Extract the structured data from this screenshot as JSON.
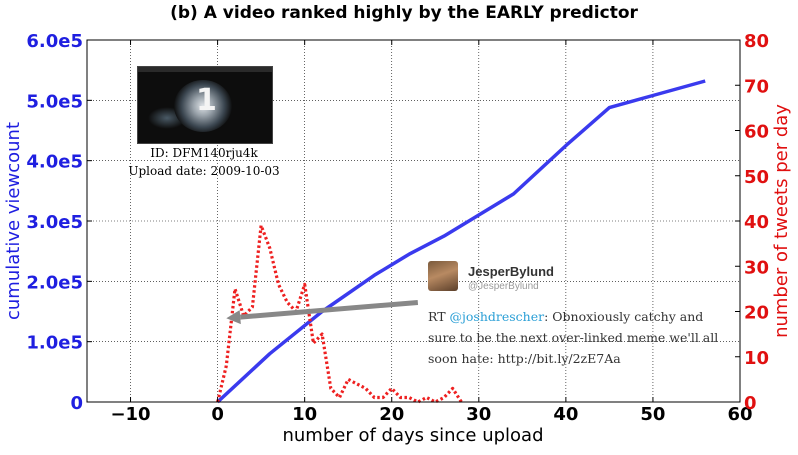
{
  "chart_data": {
    "type": "line",
    "title": "(b) A video ranked highly by the EARLY predictor",
    "xlabel": "number of days since upload",
    "ylabel_left": "cumulative viewcount",
    "ylabel_right": "number of tweets per day",
    "xlim": [
      -15,
      60
    ],
    "ylim_left": [
      0,
      600000
    ],
    "ylim_right": [
      0,
      80
    ],
    "x_ticks": [
      -10,
      0,
      10,
      20,
      30,
      40,
      50,
      60
    ],
    "x_tick_labels": [
      "−10",
      "0",
      "10",
      "20",
      "30",
      "40",
      "50",
      "60"
    ],
    "y_left_ticks": [
      0,
      100000,
      200000,
      300000,
      400000,
      500000,
      600000
    ],
    "y_left_tick_labels": [
      "0",
      "1.0e5",
      "2.0e5",
      "3.0e5",
      "4.0e5",
      "5.0e5",
      "6.0e5"
    ],
    "y_right_ticks": [
      0,
      10,
      20,
      30,
      40,
      50,
      60,
      70,
      80
    ],
    "y_right_tick_labels": [
      "0",
      "10",
      "20",
      "30",
      "40",
      "50",
      "60",
      "70",
      "80"
    ],
    "grid": true,
    "series": [
      {
        "axis": "left",
        "style": "solid",
        "color": "#3a3aee",
        "x": [
          0,
          6,
          12,
          18,
          22,
          26,
          30,
          34,
          40,
          45,
          50,
          56
        ],
        "y": [
          0,
          80000,
          150000,
          210000,
          245000,
          275000,
          310000,
          345000,
          425000,
          488000,
          508000,
          532000
        ]
      },
      {
        "axis": "right",
        "style": "dotted",
        "color": "#ee2020",
        "x": [
          0,
          1,
          2,
          3,
          4,
          5,
          6,
          7,
          8,
          9,
          10,
          11,
          12,
          13,
          14,
          15,
          16,
          17,
          18,
          19,
          20,
          21,
          22,
          23,
          24,
          25,
          26,
          27,
          28
        ],
        "y": [
          0,
          8,
          25,
          19,
          21,
          39,
          34,
          26,
          22,
          20,
          26,
          13,
          15,
          3,
          1,
          5,
          4,
          3,
          1,
          1,
          3,
          1,
          1,
          0,
          1,
          0,
          1,
          3,
          0
        ]
      }
    ],
    "arrow": {
      "from": [
        23,
        22
      ],
      "to": [
        1,
        18.5
      ],
      "axis": "right",
      "color": "#888888"
    }
  },
  "video": {
    "id_label": "ID: DFM140rju4k",
    "upload_date_label": "Upload date: 2009-10-03",
    "thumbnail_text": "1"
  },
  "tweet": {
    "author": "JesperBylund",
    "handle": "@JesperBylund",
    "text_prefix": "RT ",
    "mention": "@joshdrescher",
    "text_body": ": Obnoxiously catchy and sure to be the next over-linked meme we'll all soon hate: http://bit.ly/2zE7Aa"
  },
  "colors": {
    "left_axis": "#1f1fe0",
    "right_axis": "#e01010",
    "arrow": "#888888"
  }
}
